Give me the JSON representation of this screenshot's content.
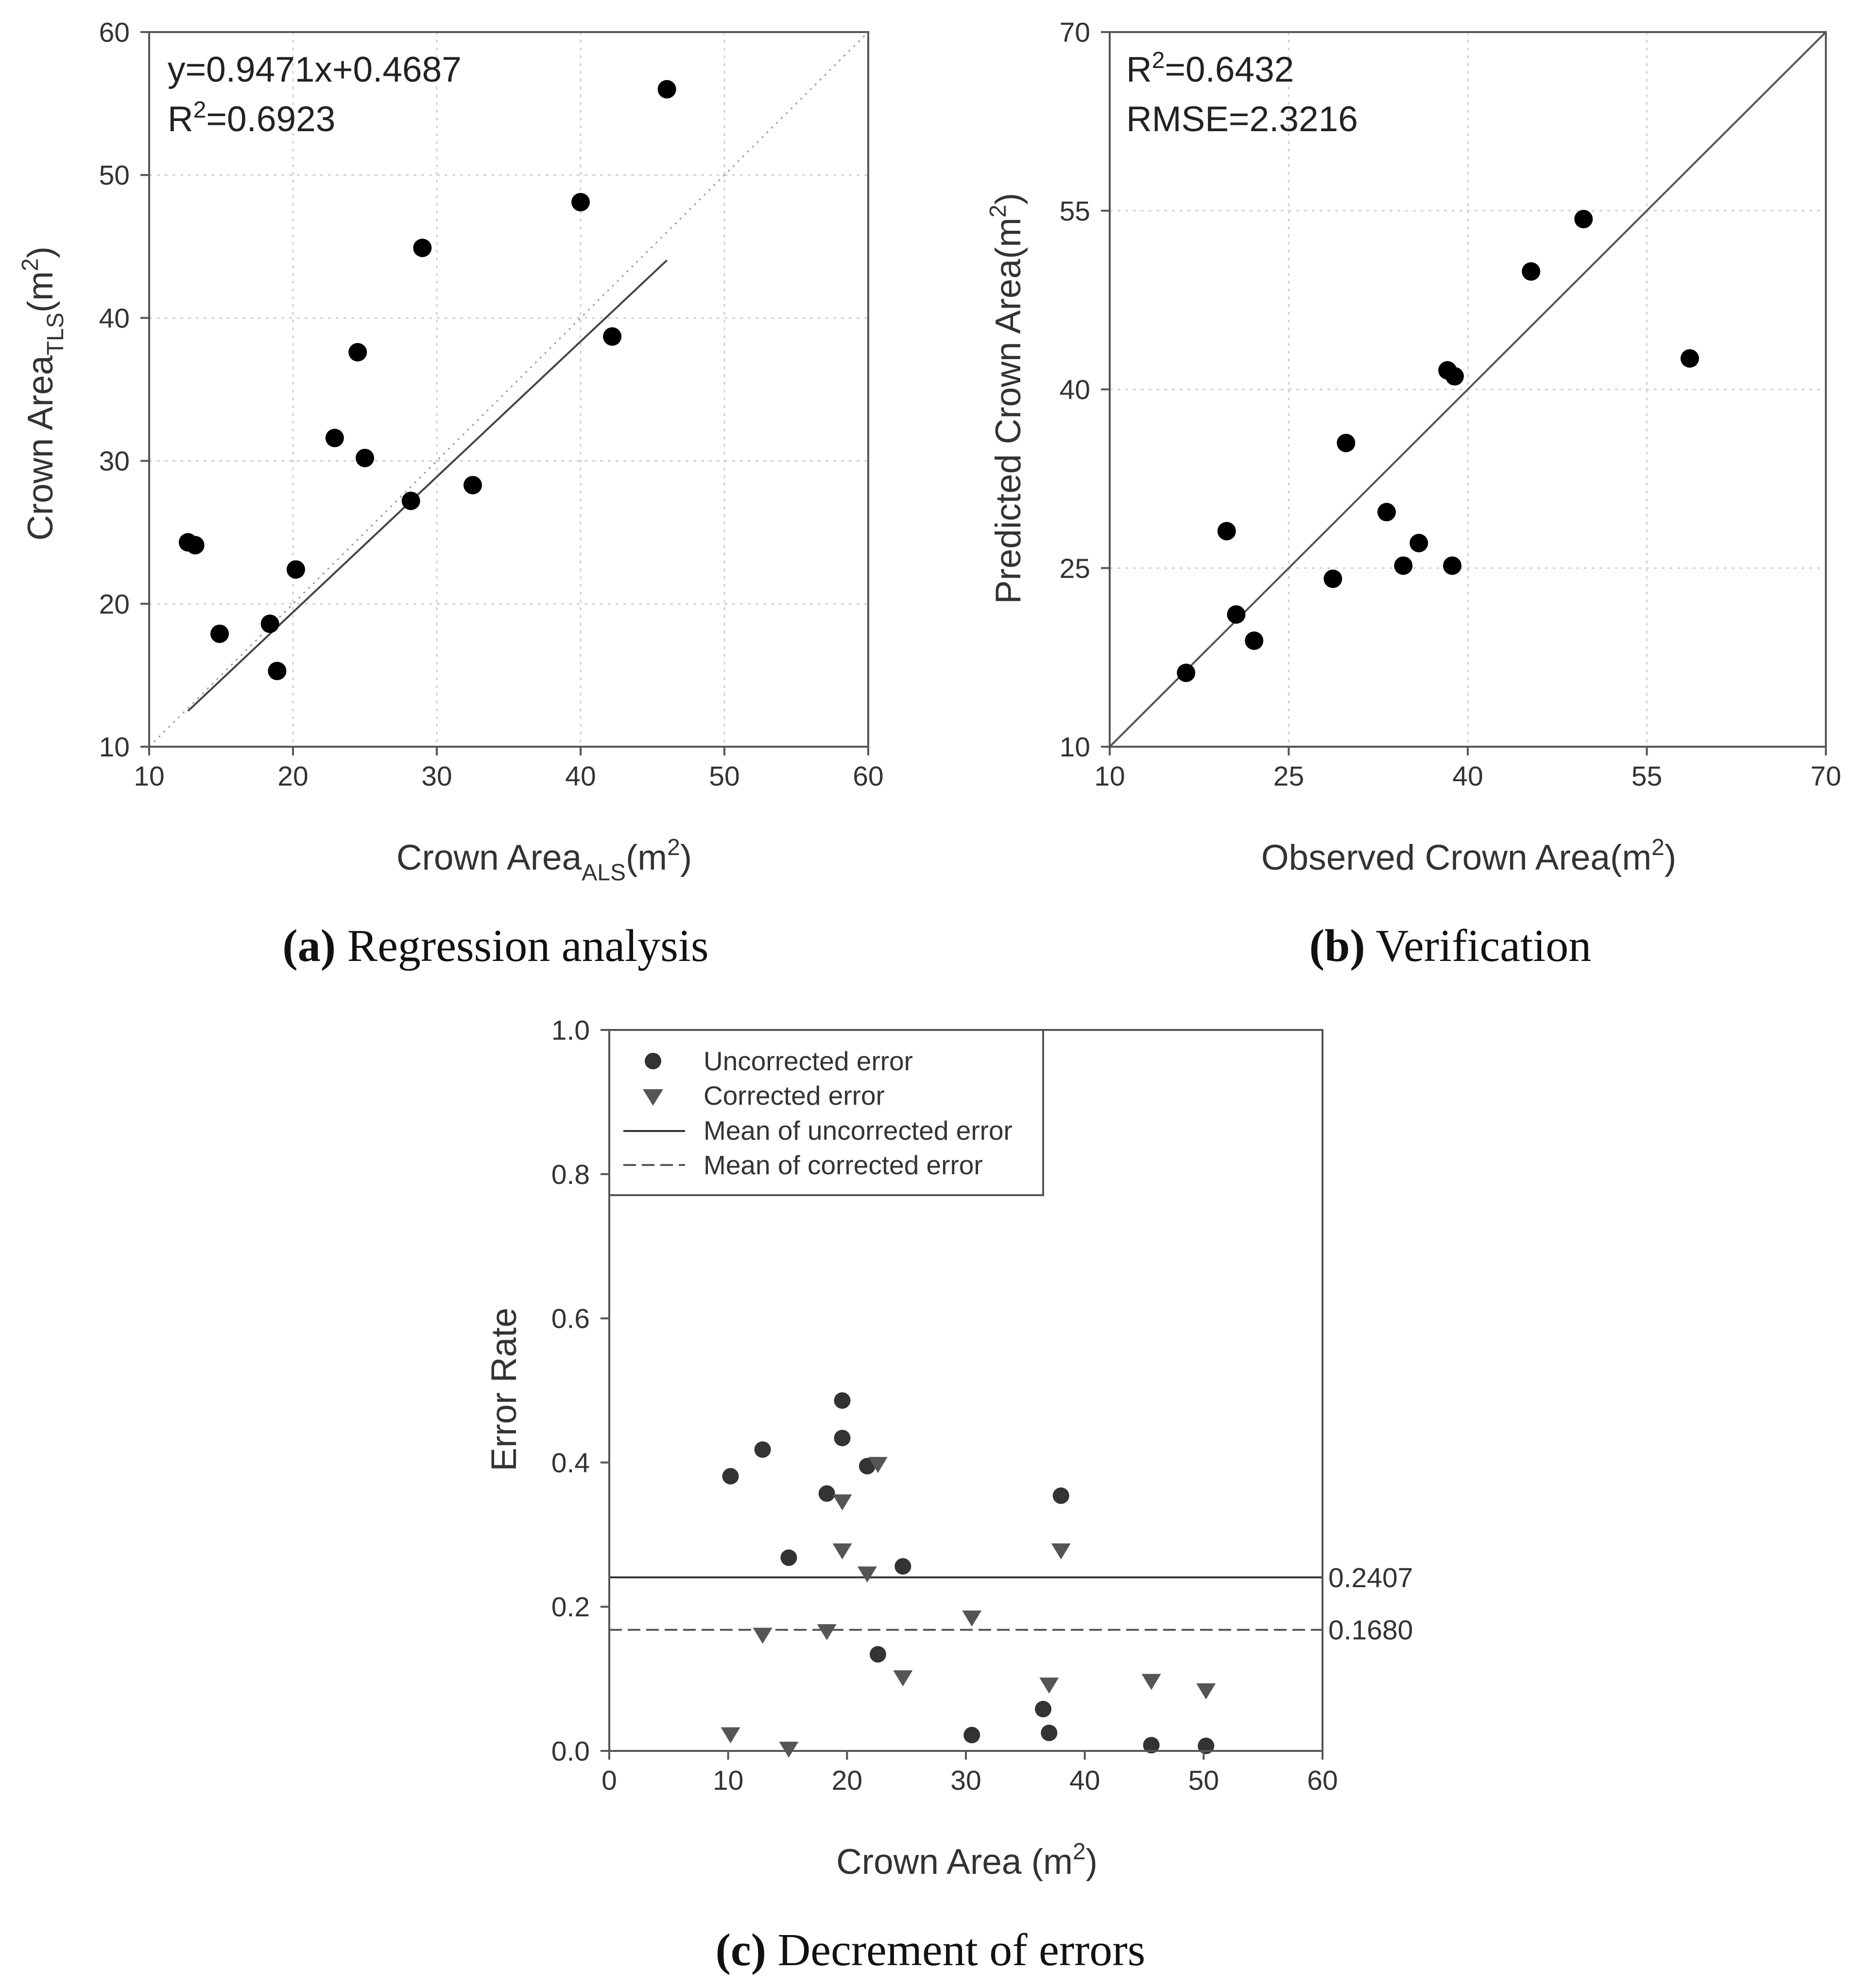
{
  "chart_data": [
    {
      "id": "a",
      "type": "scatter",
      "caption_letter": "(a)",
      "caption_text": " Regression analysis",
      "annotation_lines": [
        "y=0.9471x+0.4687",
        "R2=0.6923"
      ],
      "xlabel": "Crown Area_ALS(m2)",
      "xlabel_parts": {
        "main": "Crown Area",
        "sub": "ALS",
        "unit_open": "(m",
        "sup": "2",
        "unit_close": ")"
      },
      "ylabel": "Crown Area_TLS(m2)",
      "ylabel_parts": {
        "main": "Crown Area",
        "sub": "TLS",
        "unit_open": "(m",
        "sup": "2",
        "unit_close": ")"
      },
      "xlim": [
        10,
        60
      ],
      "ylim": [
        10,
        60
      ],
      "xticks": [
        10,
        20,
        30,
        40,
        50,
        60
      ],
      "yticks": [
        10,
        20,
        30,
        40,
        50,
        60
      ],
      "grid": true,
      "points": [
        [
          12.7,
          24.3
        ],
        [
          13.2,
          24.1
        ],
        [
          14.9,
          17.9
        ],
        [
          18.4,
          18.6
        ],
        [
          18.9,
          15.3
        ],
        [
          20.2,
          22.4
        ],
        [
          22.9,
          31.6
        ],
        [
          24.5,
          37.6
        ],
        [
          25.0,
          30.2
        ],
        [
          28.2,
          27.2
        ],
        [
          29.0,
          44.9
        ],
        [
          32.5,
          28.3
        ],
        [
          40.0,
          48.1
        ],
        [
          42.2,
          38.7
        ],
        [
          46.0,
          56.0
        ]
      ],
      "fit_line": {
        "slope": 0.9471,
        "intercept": 0.4687,
        "x_start": 12.7,
        "x_end": 46.0
      },
      "reference_line": "1:1"
    },
    {
      "id": "b",
      "type": "scatter",
      "caption_letter": "(b)",
      "caption_text": " Verification",
      "annotation_lines": [
        "R2=0.6432",
        "RMSE=2.3216"
      ],
      "xlabel": "Observed Crown Area(m2)",
      "xlabel_parts": {
        "main": "Observed Crown Area",
        "unit_open": "(m",
        "sup": "2",
        "unit_close": ")"
      },
      "ylabel": "Predicted Crown Area(m2)",
      "ylabel_parts": {
        "main": "Predicted Crown Area",
        "unit_open": "(m",
        "sup": "2",
        "unit_close": ")"
      },
      "xlim": [
        10,
        70
      ],
      "ylim": [
        10,
        70
      ],
      "xticks": [
        10,
        25,
        40,
        55,
        70
      ],
      "yticks": [
        10,
        25,
        40,
        55,
        70
      ],
      "grid": true,
      "points": [
        [
          16.4,
          16.2
        ],
        [
          19.8,
          28.1
        ],
        [
          20.6,
          21.1
        ],
        [
          22.1,
          18.9
        ],
        [
          28.7,
          24.1
        ],
        [
          29.8,
          35.5
        ],
        [
          33.2,
          29.7
        ],
        [
          34.6,
          25.2
        ],
        [
          35.9,
          27.1
        ],
        [
          38.3,
          41.6
        ],
        [
          38.7,
          25.2
        ],
        [
          38.9,
          41.1
        ],
        [
          45.3,
          49.9
        ],
        [
          49.7,
          54.3
        ],
        [
          58.6,
          42.6
        ]
      ],
      "reference_line": "1:1"
    },
    {
      "id": "c",
      "type": "scatter",
      "caption_letter": "(c)",
      "caption_text": " Decrement of errors",
      "xlabel": "Crown Area (m2)",
      "xlabel_parts": {
        "main": "Crown Area ",
        "unit_open": "(m",
        "sup": "2",
        "unit_close": ")"
      },
      "ylabel": "Error Rate",
      "xlim": [
        0,
        60
      ],
      "ylim": [
        0.0,
        1.0
      ],
      "xticks": [
        "0",
        "10",
        "20",
        "30",
        "40",
        "50",
        "60"
      ],
      "yticks": [
        "0.0",
        "0.2",
        "0.4",
        "0.6",
        "0.8",
        "1.0"
      ],
      "grid": false,
      "legend_position": "top-left",
      "series": [
        {
          "name": "Uncorrected error",
          "marker": "circle",
          "points": [
            [
              10.2,
              0.381
            ],
            [
              12.9,
              0.418
            ],
            [
              15.1,
              0.268
            ],
            [
              18.3,
              0.357
            ],
            [
              19.6,
              0.486
            ],
            [
              19.6,
              0.434
            ],
            [
              21.7,
              0.395
            ],
            [
              22.6,
              0.134
            ],
            [
              24.7,
              0.256
            ],
            [
              30.5,
              0.022
            ],
            [
              36.5,
              0.058
            ],
            [
              37.0,
              0.025
            ],
            [
              38.0,
              0.354
            ],
            [
              45.6,
              0.008
            ],
            [
              50.2,
              0.007
            ]
          ]
        },
        {
          "name": "Corrected error",
          "marker": "triangle-down",
          "points": [
            [
              10.2,
              0.022
            ],
            [
              12.9,
              0.16
            ],
            [
              15.1,
              0.002
            ],
            [
              18.3,
              0.165
            ],
            [
              19.6,
              0.345
            ],
            [
              19.6,
              0.277
            ],
            [
              21.7,
              0.245
            ],
            [
              22.6,
              0.397
            ],
            [
              24.7,
              0.101
            ],
            [
              30.5,
              0.184
            ],
            [
              37.0,
              0.091
            ],
            [
              38.0,
              0.277
            ],
            [
              45.6,
              0.096
            ],
            [
              50.2,
              0.083
            ]
          ]
        }
      ],
      "reference_lines": [
        {
          "name": "Mean of uncorrected error",
          "value": 0.2407,
          "label": "0.2407",
          "style": "solid"
        },
        {
          "name": "Mean of corrected error",
          "value": 0.168,
          "label": "0.1680",
          "style": "dashed"
        }
      ]
    }
  ]
}
